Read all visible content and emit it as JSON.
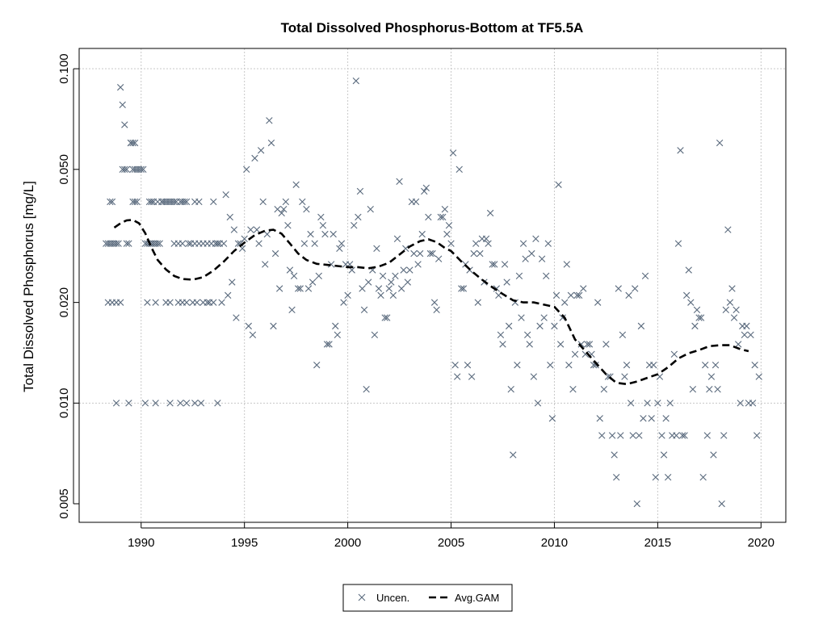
{
  "chart_data": {
    "type": "scatter",
    "title": "Total Dissolved Phosphorus-Bottom at TF5.5A",
    "xlabel": "",
    "ylabel": "Total Dissolved Phosphorus [mg/L]",
    "y_scale": "log",
    "xlim": [
      1987.0,
      2021.2
    ],
    "ylim": [
      0.0044,
      0.115
    ],
    "x_ticks": [
      1990,
      1995,
      2000,
      2005,
      2010,
      2015,
      2020
    ],
    "x_tick_labels": [
      "1990",
      "1995",
      "2000",
      "2005",
      "2010",
      "2015",
      "2020"
    ],
    "y_ticks": [
      0.005,
      0.01,
      0.02,
      0.05,
      0.1
    ],
    "y_tick_labels": [
      "0.005",
      "0.010",
      "0.020",
      "0.050",
      "0.100"
    ],
    "grid": true,
    "legend_position": "bottom-center",
    "colors": {
      "points": "#5a6a7d",
      "gam": "#000000"
    },
    "series": [
      {
        "name": "Uncen.",
        "marker": "x",
        "x": [
          1988.3,
          1988.4,
          1988.5,
          1988.6,
          1988.7,
          1988.8,
          1988.9,
          1989.0,
          1989.1,
          1989.2,
          1989.3,
          1989.4,
          1989.5,
          1989.6,
          1989.7,
          1989.8,
          1989.9,
          1990.0,
          1990.1,
          1988.5,
          1988.6,
          1989.6,
          1989.7,
          1988.4,
          1988.6,
          1988.8,
          1989.0,
          1988.8,
          1989.4,
          1989.1,
          1989.2,
          1989.3,
          1989.5,
          1989.6,
          1989.7,
          1989.8,
          1990.2,
          1990.3,
          1990.4,
          1990.5,
          1990.6,
          1990.7,
          1990.8,
          1990.9,
          1990.5,
          1990.6,
          1991.0,
          1991.1,
          1991.3,
          1991.5,
          1991.6,
          1991.7,
          1991.9,
          1992.0,
          1992.1,
          1992.2,
          1992.4,
          1992.6,
          1992.8,
          1993.0,
          1993.2,
          1993.4,
          1993.6,
          1993.7,
          1993.8,
          1990.3,
          1990.7,
          1991.2,
          1991.4,
          1991.8,
          1992.0,
          1992.2,
          1992.5,
          1992.7,
          1993.0,
          1993.3,
          1993.5,
          1993.9,
          1990.4,
          1990.5,
          1990.8,
          1991.0,
          1991.2,
          1991.4,
          1991.6,
          1991.8,
          1992.0,
          1992.3,
          1992.6,
          1992.8,
          1993.2,
          1993.5,
          1993.7,
          1994.0,
          1990.2,
          1990.7,
          1991.4,
          1991.9,
          1992.2,
          1992.6,
          1992.9,
          1993.7,
          1994.1,
          1994.3,
          1994.5,
          1994.7,
          1994.9,
          1995.1,
          1995.3,
          1995.5,
          1995.7,
          1995.9,
          1996.1,
          1996.3,
          1996.5,
          1996.7,
          1996.9,
          1997.1,
          1997.3,
          1997.5,
          1997.7,
          1997.9,
          1994.2,
          1994.4,
          1994.6,
          1994.8,
          1995.0,
          1995.2,
          1995.4,
          1995.6,
          1995.8,
          1996.0,
          1996.2,
          1996.4,
          1996.6,
          1996.8,
          1997.0,
          1997.2,
          1997.4,
          1997.6,
          1997.8,
          1998.0,
          1998.1,
          1998.3,
          1998.5,
          1998.7,
          1998.9,
          1999.1,
          1999.3,
          1999.5,
          1999.7,
          1999.9,
          1998.2,
          1998.4,
          1998.6,
          1998.8,
          1999.0,
          1999.2,
          1999.4,
          1999.6,
          1999.8,
          2000.0,
          2000.2,
          2000.4,
          2000.5,
          2000.7,
          2000.9,
          2001.1,
          2001.3,
          2001.5,
          2001.7,
          2001.9,
          2002.1,
          2002.3,
          2002.5,
          2002.7,
          2002.9,
          2003.1,
          2003.3,
          2003.5,
          2003.7,
          2003.9,
          2000.1,
          2000.3,
          2000.6,
          2000.8,
          2001.0,
          2001.2,
          2001.4,
          2001.6,
          2001.8,
          2002.0,
          2002.2,
          2002.4,
          2002.6,
          2002.8,
          2003.0,
          2003.2,
          2003.4,
          2003.6,
          2003.8,
          2004.0,
          2004.2,
          2004.4,
          2004.6,
          2004.8,
          2005.0,
          2005.2,
          2005.4,
          2005.6,
          2005.8,
          2006.0,
          2006.2,
          2006.4,
          2006.6,
          2006.8,
          2007.0,
          2007.2,
          2007.4,
          2007.6,
          2007.8,
          2004.1,
          2004.3,
          2004.5,
          2004.7,
          2004.9,
          2005.1,
          2005.3,
          2005.5,
          2005.7,
          2005.9,
          2006.1,
          2006.3,
          2006.5,
          2006.7,
          2006.9,
          2007.1,
          2007.3,
          2007.5,
          2007.7,
          2007.9,
          2008.0,
          2008.2,
          2008.4,
          2008.6,
          2008.8,
          2009.0,
          2009.2,
          2009.4,
          2009.6,
          2009.8,
          2010.0,
          2010.2,
          2010.4,
          2010.6,
          2010.8,
          2011.0,
          2011.2,
          2011.4,
          2011.6,
          2011.8,
          2008.1,
          2008.3,
          2008.5,
          2008.7,
          2008.9,
          2009.1,
          2009.3,
          2009.5,
          2009.7,
          2009.9,
          2010.1,
          2010.3,
          2010.5,
          2010.7,
          2010.9,
          2011.1,
          2011.3,
          2011.5,
          2011.7,
          2011.9,
          2012.0,
          2012.2,
          2012.4,
          2012.6,
          2012.8,
          2013.0,
          2013.2,
          2013.4,
          2013.6,
          2013.8,
          2014.0,
          2014.2,
          2014.4,
          2014.6,
          2014.8,
          2015.0,
          2015.2,
          2015.4,
          2015.6,
          2015.8,
          2012.1,
          2012.3,
          2012.5,
          2012.7,
          2012.9,
          2013.1,
          2013.3,
          2013.5,
          2013.7,
          2013.9,
          2014.1,
          2014.3,
          2014.5,
          2014.7,
          2014.9,
          2015.1,
          2015.3,
          2015.5,
          2015.7,
          2015.9,
          2016.0,
          2016.2,
          2016.4,
          2016.6,
          2016.8,
          2017.0,
          2017.2,
          2017.4,
          2017.6,
          2017.8,
          2018.0,
          2018.2,
          2018.4,
          2018.6,
          2018.8,
          2019.0,
          2019.2,
          2019.4,
          2019.6,
          2019.8,
          2016.1,
          2016.3,
          2016.5,
          2016.7,
          2016.9,
          2017.1,
          2017.3,
          2017.5,
          2017.7,
          2017.9,
          2018.1,
          2018.3,
          2018.5,
          2018.7,
          2018.9,
          2019.1,
          2019.3,
          2019.5,
          2019.7,
          2019.9
        ],
        "y": [
          0.03,
          0.03,
          0.03,
          0.03,
          0.03,
          0.03,
          0.03,
          0.088,
          0.078,
          0.068,
          0.03,
          0.03,
          0.06,
          0.05,
          0.05,
          0.05,
          0.05,
          0.05,
          0.05,
          0.04,
          0.04,
          0.04,
          0.04,
          0.02,
          0.02,
          0.02,
          0.02,
          0.01,
          0.01,
          0.05,
          0.05,
          0.05,
          0.06,
          0.06,
          0.06,
          0.04,
          0.03,
          0.03,
          0.03,
          0.03,
          0.03,
          0.03,
          0.03,
          0.03,
          0.04,
          0.04,
          0.04,
          0.04,
          0.04,
          0.04,
          0.04,
          0.04,
          0.04,
          0.04,
          0.04,
          0.04,
          0.03,
          0.03,
          0.03,
          0.03,
          0.03,
          0.03,
          0.03,
          0.03,
          0.03,
          0.02,
          0.02,
          0.02,
          0.02,
          0.02,
          0.02,
          0.02,
          0.02,
          0.02,
          0.02,
          0.02,
          0.02,
          0.02,
          0.04,
          0.04,
          0.04,
          0.04,
          0.04,
          0.04,
          0.03,
          0.03,
          0.03,
          0.03,
          0.04,
          0.04,
          0.02,
          0.04,
          0.03,
          0.03,
          0.01,
          0.01,
          0.01,
          0.01,
          0.01,
          0.01,
          0.01,
          0.01,
          0.042,
          0.036,
          0.033,
          0.03,
          0.029,
          0.05,
          0.033,
          0.054,
          0.03,
          0.04,
          0.032,
          0.06,
          0.028,
          0.022,
          0.038,
          0.034,
          0.019,
          0.045,
          0.022,
          0.03,
          0.021,
          0.023,
          0.018,
          0.03,
          0.031,
          0.017,
          0.016,
          0.033,
          0.057,
          0.026,
          0.07,
          0.017,
          0.038,
          0.037,
          0.04,
          0.025,
          0.024,
          0.022,
          0.04,
          0.038,
          0.022,
          0.023,
          0.013,
          0.036,
          0.032,
          0.015,
          0.032,
          0.016,
          0.03,
          0.026,
          0.032,
          0.03,
          0.024,
          0.034,
          0.015,
          0.026,
          0.017,
          0.029,
          0.02,
          0.021,
          0.025,
          0.092,
          0.036,
          0.022,
          0.011,
          0.038,
          0.016,
          0.022,
          0.024,
          0.018,
          0.023,
          0.024,
          0.046,
          0.025,
          0.023,
          0.04,
          0.04,
          0.028,
          0.043,
          0.036,
          0.026,
          0.034,
          0.043,
          0.019,
          0.023,
          0.025,
          0.029,
          0.021,
          0.018,
          0.022,
          0.021,
          0.031,
          0.022,
          0.029,
          0.025,
          0.028,
          0.026,
          0.032,
          0.044,
          0.028,
          0.02,
          0.027,
          0.036,
          0.032,
          0.03,
          0.013,
          0.05,
          0.022,
          0.013,
          0.012,
          0.03,
          0.028,
          0.023,
          0.03,
          0.026,
          0.022,
          0.016,
          0.026,
          0.017,
          0.028,
          0.019,
          0.036,
          0.038,
          0.034,
          0.056,
          0.012,
          0.022,
          0.026,
          0.025,
          0.028,
          0.02,
          0.031,
          0.031,
          0.037,
          0.026,
          0.021,
          0.015,
          0.023,
          0.011,
          0.007,
          0.013,
          0.018,
          0.027,
          0.015,
          0.012,
          0.01,
          0.027,
          0.024,
          0.013,
          0.017,
          0.045,
          0.018,
          0.026,
          0.021,
          0.014,
          0.021,
          0.022,
          0.015,
          0.014,
          0.02,
          0.024,
          0.03,
          0.016,
          0.028,
          0.031,
          0.017,
          0.018,
          0.03,
          0.009,
          0.021,
          0.015,
          0.02,
          0.013,
          0.011,
          0.021,
          0.015,
          0.014,
          0.015,
          0.013,
          0.013,
          0.009,
          0.011,
          0.012,
          0.008,
          0.006,
          0.008,
          0.012,
          0.021,
          0.008,
          0.005,
          0.017,
          0.024,
          0.013,
          0.013,
          0.01,
          0.008,
          0.009,
          0.01,
          0.014,
          0.02,
          0.008,
          0.015,
          0.012,
          0.007,
          0.022,
          0.016,
          0.013,
          0.01,
          0.022,
          0.008,
          0.009,
          0.01,
          0.009,
          0.006,
          0.012,
          0.007,
          0.006,
          0.008,
          0.008,
          0.03,
          0.008,
          0.021,
          0.02,
          0.017,
          0.018,
          0.006,
          0.008,
          0.012,
          0.013,
          0.06,
          0.008,
          0.033,
          0.022,
          0.019,
          0.01,
          0.016,
          0.01,
          0.01,
          0.008,
          0.057,
          0.008,
          0.025,
          0.011,
          0.019,
          0.018,
          0.013,
          0.011,
          0.007,
          0.011,
          0.005,
          0.019,
          0.02,
          0.018,
          0.015,
          0.017,
          0.017,
          0.016,
          0.013,
          0.012
        ]
      },
      {
        "name": "Avg.GAM",
        "line": "dashed",
        "x": [
          1988.7,
          1989.0,
          1989.3,
          1989.6,
          1989.9,
          1990.2,
          1990.5,
          1990.8,
          1991.2,
          1991.6,
          1992.0,
          1992.5,
          1993.0,
          1993.5,
          1994.0,
          1994.5,
          1995.0,
          1995.5,
          1996.0,
          1996.4,
          1996.8,
          1997.2,
          1997.6,
          1998.0,
          1998.5,
          1999.0,
          1999.5,
          2000.0,
          2000.5,
          2001.0,
          2001.5,
          2002.0,
          2002.5,
          2003.0,
          2003.5,
          2003.9,
          2004.3,
          2004.7,
          2005.0,
          2005.5,
          2006.0,
          2006.5,
          2007.0,
          2007.5,
          2008.0,
          2008.5,
          2009.0,
          2009.5,
          2010.0,
          2010.5,
          2011.0,
          2011.5,
          2012.0,
          2012.5,
          2013.0,
          2013.5,
          2014.0,
          2014.5,
          2015.0,
          2015.5,
          2016.0,
          2016.5,
          2017.0,
          2017.5,
          2018.0,
          2018.5,
          2019.0,
          2019.4
        ],
        "y": [
          0.0335,
          0.0345,
          0.0352,
          0.0353,
          0.0345,
          0.0322,
          0.0292,
          0.0268,
          0.0251,
          0.024,
          0.0235,
          0.0234,
          0.0238,
          0.0249,
          0.0265,
          0.0285,
          0.0302,
          0.0318,
          0.0328,
          0.033,
          0.0321,
          0.03,
          0.028,
          0.0268,
          0.0261,
          0.0259,
          0.0257,
          0.0255,
          0.0255,
          0.0253,
          0.0256,
          0.0263,
          0.0278,
          0.0294,
          0.0305,
          0.0309,
          0.0303,
          0.0291,
          0.0285,
          0.0265,
          0.0248,
          0.0234,
          0.0222,
          0.0212,
          0.0203,
          0.02,
          0.02,
          0.0197,
          0.0194,
          0.018,
          0.0155,
          0.0143,
          0.0132,
          0.0122,
          0.0115,
          0.0114,
          0.0116,
          0.0119,
          0.0122,
          0.0128,
          0.0136,
          0.0141,
          0.0144,
          0.0148,
          0.0149,
          0.0149,
          0.0145,
          0.0143
        ]
      }
    ]
  }
}
